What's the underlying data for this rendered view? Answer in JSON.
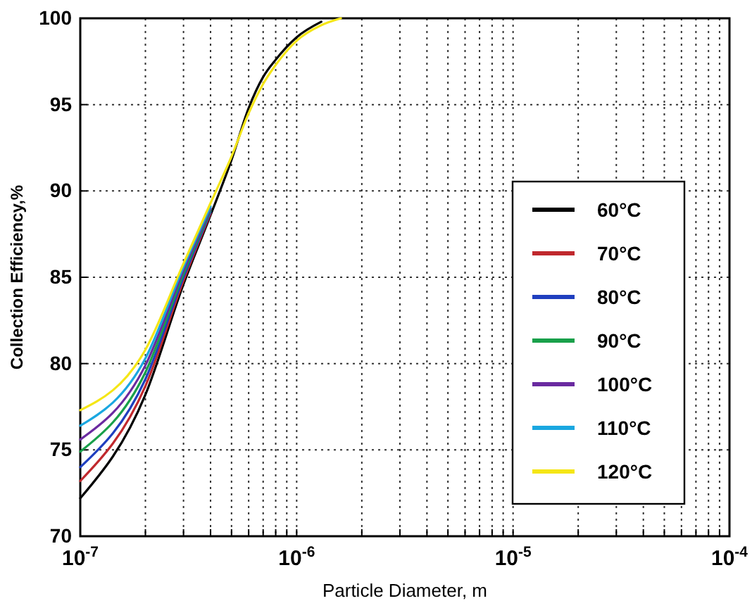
{
  "chart_data": {
    "type": "line",
    "xlabel": "Particle Diameter, m",
    "ylabel": "Collection Efficiency,%",
    "log": "x",
    "grid": true,
    "legend": "right",
    "line_style": "solid",
    "marker": "none",
    "x": [
      1e-07,
      2e-07,
      3e-07,
      4e-07,
      5e-07,
      6e-07,
      7e-07,
      8e-07,
      1e-06,
      1.3e-06,
      1.6e-06
    ],
    "xlim": [
      1e-07,
      0.0001
    ],
    "xticks": [
      {
        "value": 1e-07,
        "label": "10$^{-7}$"
      },
      {
        "value": 2e-07,
        "label": null
      },
      {
        "value": 3e-07,
        "label": null
      },
      {
        "value": 4e-07,
        "label": null
      },
      {
        "value": 5e-07,
        "label": null
      },
      {
        "value": 6e-07,
        "label": null
      },
      {
        "value": 7e-07,
        "label": null
      },
      {
        "value": 8e-07,
        "label": null
      },
      {
        "value": 9e-07,
        "label": null
      },
      {
        "value": 1e-06,
        "label": "10$^{-6}$"
      },
      {
        "value": 2e-06,
        "label": null
      },
      {
        "value": 3e-06,
        "label": null
      },
      {
        "value": 4e-06,
        "label": null
      },
      {
        "value": 5e-06,
        "label": null
      },
      {
        "value": 6e-06,
        "label": null
      },
      {
        "value": 7e-06,
        "label": null
      },
      {
        "value": 8e-06,
        "label": null
      },
      {
        "value": 9e-06,
        "label": null
      },
      {
        "value": 1e-05,
        "label": "10$^{-5}$"
      },
      {
        "value": 2e-05,
        "label": null
      },
      {
        "value": 3e-05,
        "label": null
      },
      {
        "value": 4e-05,
        "label": null
      },
      {
        "value": 5e-05,
        "label": null
      },
      {
        "value": 6e-05,
        "label": null
      },
      {
        "value": 7e-05,
        "label": null
      },
      {
        "value": 8e-05,
        "label": null
      },
      {
        "value": 9e-05,
        "label": null
      },
      {
        "value": 0.0001,
        "label": "10$^{-4}$"
      }
    ],
    "ylim": [
      70,
      100
    ],
    "yticks": [
      70,
      75,
      80,
      85,
      90,
      95,
      100
    ],
    "series": [
      {
        "name": "60°C",
        "color": "#000000",
        "values": [
          72.2,
          78.2,
          84.6,
          88.6,
          91.8,
          94.8,
          96.6,
          97.6,
          98.9,
          99.8,
          null
        ]
      },
      {
        "name": "70°C",
        "color": "#c0282d",
        "values": [
          73.2,
          78.7,
          84.8,
          88.7,
          null,
          null,
          null,
          null,
          null,
          null,
          null
        ]
      },
      {
        "name": "80°C",
        "color": "#1f3fbf",
        "values": [
          74.0,
          79.1,
          85.0,
          88.8,
          null,
          null,
          null,
          null,
          null,
          null,
          null
        ]
      },
      {
        "name": "90°C",
        "color": "#19a04a",
        "values": [
          74.9,
          79.5,
          85.2,
          88.9,
          null,
          null,
          null,
          null,
          null,
          null,
          null
        ]
      },
      {
        "name": "100°C",
        "color": "#6a2aa0",
        "values": [
          75.6,
          79.9,
          85.4,
          89.0,
          null,
          null,
          null,
          null,
          null,
          null,
          null
        ]
      },
      {
        "name": "110°C",
        "color": "#1aa7e0",
        "values": [
          76.4,
          80.3,
          85.6,
          89.1,
          null,
          null,
          null,
          null,
          null,
          null,
          null
        ]
      },
      {
        "name": "120°C",
        "color": "#f5e616",
        "values": [
          77.3,
          80.8,
          85.8,
          89.3,
          92.0,
          94.5,
          96.2,
          97.3,
          98.7,
          99.6,
          100
        ]
      }
    ]
  }
}
